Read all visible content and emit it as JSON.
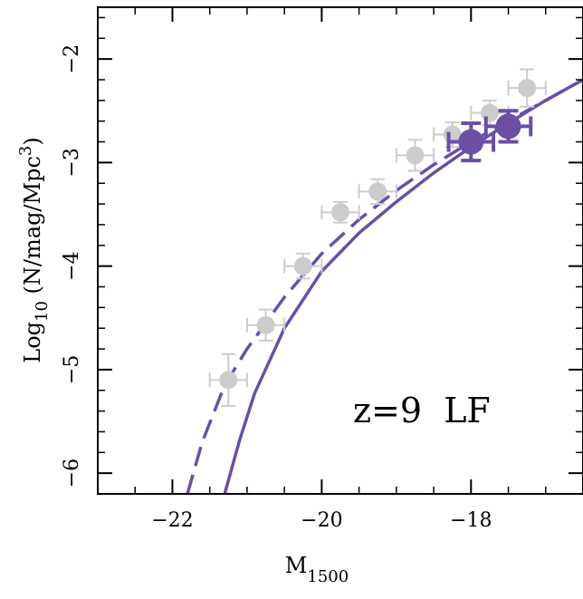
{
  "chart_data": {
    "type": "scatter",
    "xlabel": "M",
    "xlabel_sub": "1500",
    "ylabel_main": "Log",
    "ylabel_sub": "10",
    "ylabel_rest": " (N/mag/Mpc",
    "ylabel_sup": "3",
    "ylabel_close": ")",
    "annotation": "z=9  LF",
    "xlim": [
      -23,
      -16.5
    ],
    "ylim": [
      -6.2,
      -1.5
    ],
    "x_ticks": [
      -22,
      -20,
      -18
    ],
    "x_tick_labels": [
      "−22",
      "−20",
      "−18"
    ],
    "y_ticks": [
      -6,
      -5,
      -4,
      -3,
      -2
    ],
    "y_tick_labels": [
      "−6",
      "−5",
      "−4",
      "−3",
      "−2"
    ],
    "colors": {
      "primary": "#6a4fa5",
      "secondary": "#cccccc"
    },
    "series": [
      {
        "marker": "grey-circle",
        "points": [
          {
            "x": -21.25,
            "y": -5.1,
            "xerr": 0.25,
            "yerr": 0.25
          },
          {
            "x": -20.75,
            "y": -4.57,
            "xerr": 0.25,
            "yerr": 0.15
          },
          {
            "x": -20.25,
            "y": -4.0,
            "xerr": 0.25,
            "yerr": 0.12
          },
          {
            "x": -19.75,
            "y": -3.48,
            "xerr": 0.25,
            "yerr": 0.1
          },
          {
            "x": -19.25,
            "y": -3.28,
            "xerr": 0.25,
            "yerr": 0.12
          },
          {
            "x": -18.75,
            "y": -2.93,
            "xerr": 0.25,
            "yerr": 0.15
          },
          {
            "x": -18.25,
            "y": -2.73,
            "xerr": 0.25,
            "yerr": 0.12
          },
          {
            "x": -17.75,
            "y": -2.52,
            "xerr": 0.25,
            "yerr": 0.12
          },
          {
            "x": -17.25,
            "y": -2.28,
            "xerr": 0.25,
            "yerr": 0.18
          }
        ]
      },
      {
        "marker": "purple-circle",
        "points": [
          {
            "x": -18.0,
            "y": -2.8,
            "xerr": 0.3,
            "yerr": 0.18
          },
          {
            "x": -17.5,
            "y": -2.65,
            "xerr": 0.3,
            "yerr": 0.15
          }
        ]
      },
      {
        "marker": "solid-line",
        "points": [
          {
            "x": -21.3,
            "y": -6.2
          },
          {
            "x": -21.1,
            "y": -5.68
          },
          {
            "x": -20.9,
            "y": -5.23
          },
          {
            "x": -20.5,
            "y": -4.6
          },
          {
            "x": -20.0,
            "y": -4.05
          },
          {
            "x": -19.5,
            "y": -3.68
          },
          {
            "x": -19.0,
            "y": -3.38
          },
          {
            "x": -18.5,
            "y": -3.1
          },
          {
            "x": -18.0,
            "y": -2.85
          },
          {
            "x": -17.5,
            "y": -2.62
          },
          {
            "x": -17.0,
            "y": -2.4
          },
          {
            "x": -16.5,
            "y": -2.2
          }
        ]
      },
      {
        "marker": "dashed-line",
        "points": [
          {
            "x": -21.8,
            "y": -6.2
          },
          {
            "x": -21.6,
            "y": -5.7
          },
          {
            "x": -21.3,
            "y": -5.15
          },
          {
            "x": -21.0,
            "y": -4.8
          },
          {
            "x": -20.5,
            "y": -4.3
          },
          {
            "x": -20.0,
            "y": -3.88
          },
          {
            "x": -19.5,
            "y": -3.55
          },
          {
            "x": -19.0,
            "y": -3.27
          },
          {
            "x": -18.5,
            "y": -3.02
          },
          {
            "x": -18.0,
            "y": -2.8
          },
          {
            "x": -17.5,
            "y": -2.6
          },
          {
            "x": -17.0,
            "y": -2.4
          },
          {
            "x": -16.5,
            "y": -2.2
          }
        ]
      }
    ]
  }
}
